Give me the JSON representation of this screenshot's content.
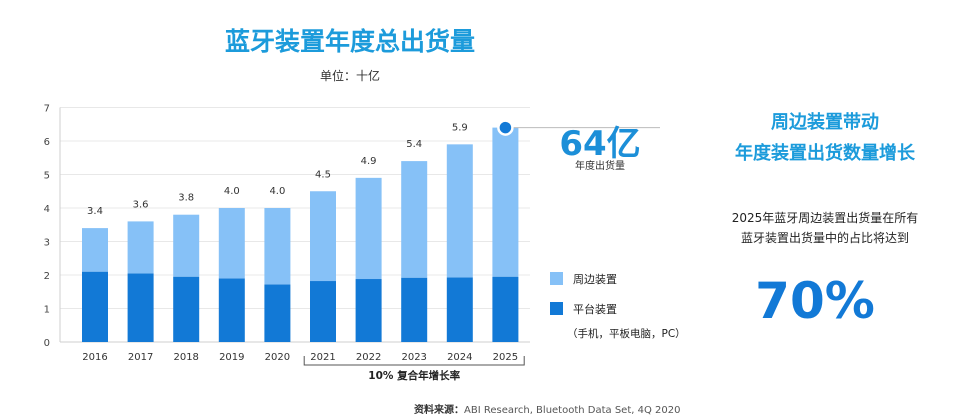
{
  "chart_data": {
    "type": "bar",
    "stacked": true,
    "title": "蓝牙装置年度总出货量",
    "subtitle": "单位：十亿",
    "categories": [
      "2016",
      "2017",
      "2018",
      "2019",
      "2020",
      "2021",
      "2022",
      "2023",
      "2024",
      "2025"
    ],
    "series": [
      {
        "name": "平台装置",
        "values": [
          2.1,
          2.05,
          1.95,
          1.9,
          1.72,
          1.82,
          1.88,
          1.92,
          1.93,
          1.95
        ],
        "color": "#1279D6"
      },
      {
        "name": "周边装置",
        "values": [
          1.3,
          1.55,
          1.85,
          2.1,
          2.28,
          2.68,
          3.02,
          3.48,
          3.97,
          4.45
        ],
        "color": "#86C1F7"
      }
    ],
    "totals_labels": [
      "3.4",
      "3.6",
      "3.8",
      "4.0",
      "4.0",
      "4.5",
      "4.9",
      "5.4",
      "5.9",
      ""
    ],
    "ylim": [
      0,
      7
    ],
    "yticks": [
      "0",
      "1",
      "2",
      "3",
      "4",
      "5",
      "6",
      "7"
    ],
    "grid": true,
    "legend": [
      {
        "label": "周边装置",
        "note": "",
        "color": "#86C1F7"
      },
      {
        "label": "平台装置",
        "note": "（手机，平板电脑，PC）",
        "color": "#1279D6"
      }
    ],
    "growth_bracket": {
      "label": "10% 复合年增长率",
      "from": "2021",
      "to": "2025"
    },
    "callout": {
      "value": "64亿",
      "label": "年度出货量",
      "category": "2025",
      "y": 6.4
    },
    "highlight_color": "#1279D6"
  },
  "side_panel": {
    "title_line1": "周边装置带动",
    "title_line2": "年度装置出货数量增长",
    "desc_line1": "2025年蓝牙周边装置出货量在所有",
    "desc_line2": "蓝牙装置出货量中的占比将达到",
    "percent": "70%"
  },
  "source": {
    "label": "资料来源：",
    "text": "ABI Research, Bluetooth Data Set, 4Q 2020"
  }
}
